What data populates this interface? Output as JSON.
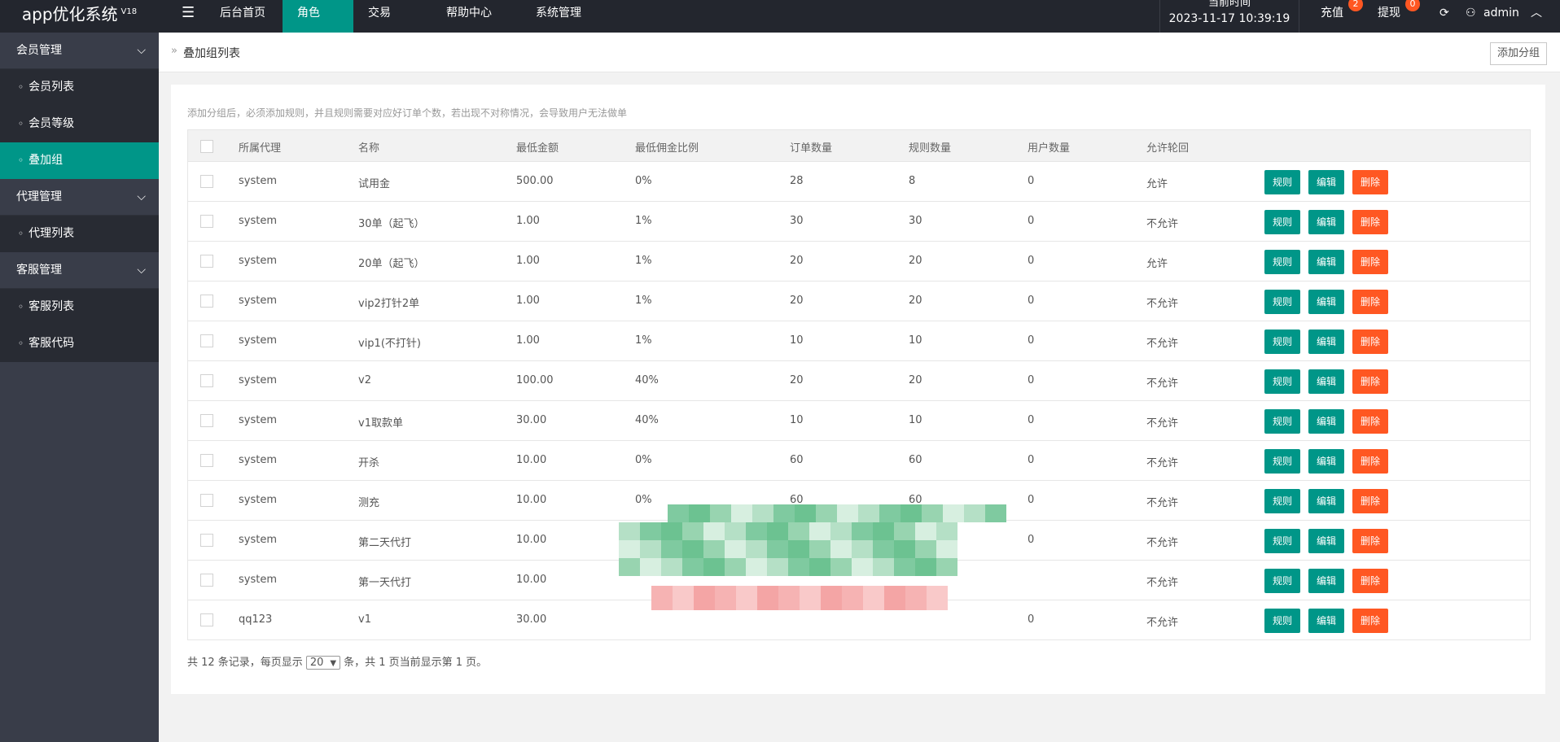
{
  "header": {
    "title": "app优化系统",
    "version": "V18",
    "nav": [
      "后台首页",
      "角色",
      "交易",
      "帮助中心",
      "系统管理"
    ],
    "time_label": "当前时间",
    "time": "2023-11-17 10:39:19",
    "recharge": "充值",
    "recharge_badge": "2",
    "withdraw": "提现",
    "withdraw_badge": "0",
    "user": "admin"
  },
  "sidebar": [
    {
      "label": "会员管理",
      "group": true
    },
    {
      "label": "会员列表"
    },
    {
      "label": "会员等级"
    },
    {
      "label": "叠加组",
      "active": true
    },
    {
      "label": "代理管理",
      "group": true
    },
    {
      "label": "代理列表"
    },
    {
      "label": "客服管理",
      "group": true
    },
    {
      "label": "客服列表"
    },
    {
      "label": "客服代码"
    }
  ],
  "breadcrumb": "叠加组列表",
  "add_button": "添加分组",
  "notice": "添加分组后，必须添加规则，并且规则需要对应好订单个数，若出现不对称情况，会导致用户无法做单",
  "table": {
    "columns": [
      "所属代理",
      "名称",
      "最低金额",
      "最低佣金比例",
      "订单数量",
      "规则数量",
      "用户数量",
      "允许轮回"
    ],
    "actions": [
      "规则",
      "编辑",
      "删除"
    ],
    "rows": [
      [
        "system",
        "试用金",
        "500.00",
        "0%",
        "28",
        "8",
        "0",
        "允许"
      ],
      [
        "system",
        "30单（起飞）",
        "1.00",
        "1%",
        "30",
        "30",
        "0",
        "不允许"
      ],
      [
        "system",
        "20单（起飞）",
        "1.00",
        "1%",
        "20",
        "20",
        "0",
        "允许"
      ],
      [
        "system",
        "vip2打针2单",
        "1.00",
        "1%",
        "20",
        "20",
        "0",
        "不允许"
      ],
      [
        "system",
        "vip1(不打针)",
        "1.00",
        "1%",
        "10",
        "10",
        "0",
        "不允许"
      ],
      [
        "system",
        "v2",
        "100.00",
        "40%",
        "20",
        "20",
        "0",
        "不允许"
      ],
      [
        "system",
        "v1取款单",
        "30.00",
        "40%",
        "10",
        "10",
        "0",
        "不允许"
      ],
      [
        "system",
        "开杀",
        "10.00",
        "0%",
        "60",
        "60",
        "0",
        "不允许"
      ],
      [
        "system",
        "测充",
        "10.00",
        "0%",
        "60",
        "60",
        "0",
        "不允许"
      ],
      [
        "system",
        "第二天代打",
        "10.00",
        null,
        null,
        null,
        "0",
        "不允许"
      ],
      [
        "system",
        "第一天代打",
        "10.00",
        null,
        null,
        null,
        null,
        "不允许"
      ],
      [
        "qq123",
        "v1",
        "30.00",
        null,
        null,
        null,
        "0",
        "不允许"
      ]
    ]
  },
  "pagination": {
    "prefix": "共 12 条记录，每页显示",
    "page_size": "20",
    "suffix": "条，共 1 页当前显示第 1 页。"
  }
}
